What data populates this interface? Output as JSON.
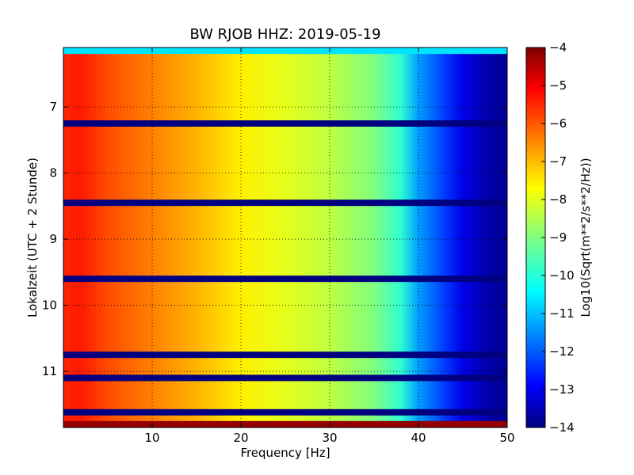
{
  "chart_data": {
    "type": "heatmap",
    "title": "BW RJOB HHZ: 2019-05-19",
    "xlabel": "Frequency [Hz]",
    "ylabel": "Lokalzeit (UTC + 2 Stunde)",
    "xlim": [
      0,
      50
    ],
    "ylim": [
      6.1,
      11.85
    ],
    "y_inverted": true,
    "x_ticks": [
      10,
      20,
      30,
      40,
      50
    ],
    "y_ticks": [
      7,
      8,
      9,
      10,
      11
    ],
    "grid": true,
    "colorbar": {
      "label": "Log10(Sqrt(m**2/s**2/Hz))",
      "range": [
        -14,
        -4
      ],
      "ticks": [
        -4,
        -5,
        -6,
        -7,
        -8,
        -9,
        -10,
        -11,
        -12,
        -13,
        -14
      ],
      "colormap": "jet"
    },
    "frequency_profile": {
      "x": [
        0,
        2,
        5,
        10,
        15,
        20,
        25,
        30,
        35,
        38,
        40,
        43,
        45,
        48,
        50
      ],
      "y": [
        -5.6,
        -5.5,
        -6.0,
        -6.5,
        -7.0,
        -7.6,
        -8.0,
        -8.4,
        -9.0,
        -9.8,
        -11.2,
        -12.2,
        -13.0,
        -13.6,
        -13.8
      ]
    },
    "gap_rows": [
      {
        "time": 6.15,
        "value": -10.5
      },
      {
        "time": 7.25,
        "value": -14.0
      },
      {
        "time": 8.45,
        "value": -14.0
      },
      {
        "time": 9.6,
        "value": -14.0
      },
      {
        "time": 10.75,
        "value": -14.0
      },
      {
        "time": 11.1,
        "value": -14.0
      },
      {
        "time": 11.62,
        "value": -14.0
      },
      {
        "time": 11.8,
        "value": -4.2
      }
    ]
  }
}
